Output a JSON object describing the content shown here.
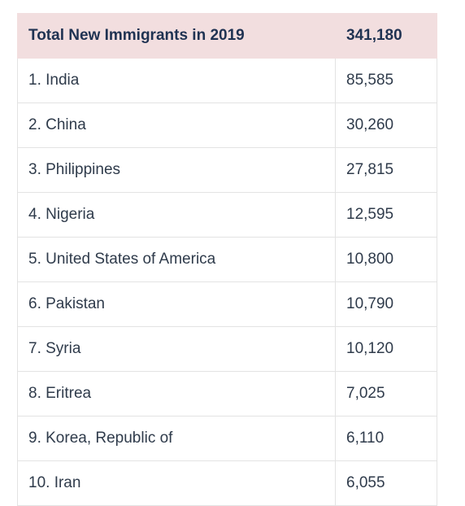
{
  "table": {
    "header": {
      "label": "Total New Immigrants in 2019",
      "value": "341,180"
    },
    "rows": [
      {
        "country": "1. India",
        "count": "85,585"
      },
      {
        "country": "2. China",
        "count": "30,260"
      },
      {
        "country": "3. Philippines",
        "count": "27,815"
      },
      {
        "country": "4. Nigeria",
        "count": "12,595"
      },
      {
        "country": "5. United States of America",
        "count": "10,800"
      },
      {
        "country": "6. Pakistan",
        "count": "10,790"
      },
      {
        "country": "7. Syria",
        "count": "10,120"
      },
      {
        "country": "8. Eritrea",
        "count": "7,025"
      },
      {
        "country": "9. Korea, Republic of",
        "count": "6,110"
      },
      {
        "country": "10. Iran",
        "count": "6,055"
      }
    ]
  },
  "colors": {
    "header_bg": "#f2dedf",
    "header_text": "#1f3252",
    "body_text": "#2f3b4b",
    "border": "#e3e3e3"
  }
}
